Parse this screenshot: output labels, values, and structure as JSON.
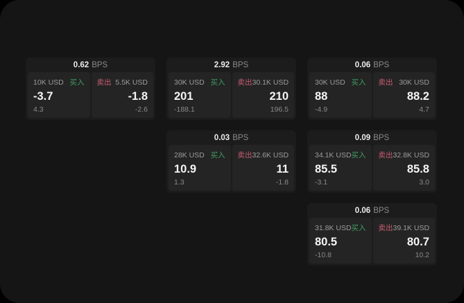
{
  "page": {
    "outer_background": "#000000",
    "surface_background": "#151515",
    "card_background": "#1c1c1c",
    "panel_background": "#242424",
    "buy_color": "#3f9e63",
    "sell_color": "#c75c6f",
    "text_primary": "#f5f5f5",
    "text_secondary": "#9c9c9c"
  },
  "cards": [
    {
      "bps_value": "0.62",
      "bps_unit": "BPS",
      "buy": {
        "amount": "10K USD",
        "side_label": "买入",
        "value": "-3.7",
        "sub_value": "4.3"
      },
      "sell": {
        "side_label": "卖出",
        "amount": "5.5K USD",
        "value": "-1.8",
        "sub_value": "-2.6"
      }
    },
    {
      "bps_value": "2.92",
      "bps_unit": "BPS",
      "buy": {
        "amount": "30K USD",
        "side_label": "买入",
        "value": "201",
        "sub_value": "-188.1"
      },
      "sell": {
        "side_label": "卖出",
        "amount": "30.1K USD",
        "value": "210",
        "sub_value": "196.5"
      }
    },
    {
      "bps_value": "0.06",
      "bps_unit": "BPS",
      "buy": {
        "amount": "30K USD",
        "side_label": "买入",
        "value": "88",
        "sub_value": "-4.9"
      },
      "sell": {
        "side_label": "卖出",
        "amount": "30K USD",
        "value": "88.2",
        "sub_value": "4.7"
      }
    },
    {
      "bps_value": "0.03",
      "bps_unit": "BPS",
      "buy": {
        "amount": "28K USD",
        "side_label": "买入",
        "value": "10.9",
        "sub_value": "1.3"
      },
      "sell": {
        "side_label": "卖出",
        "amount": "32.6K USD",
        "value": "11",
        "sub_value": "-1.8"
      }
    },
    {
      "bps_value": "0.09",
      "bps_unit": "BPS",
      "buy": {
        "amount": "34.1K USD",
        "side_label": "买入",
        "value": "85.5",
        "sub_value": "-3.1"
      },
      "sell": {
        "side_label": "卖出",
        "amount": "32.8K USD",
        "value": "85.8",
        "sub_value": "3.0"
      }
    },
    {
      "bps_value": "0.06",
      "bps_unit": "BPS",
      "buy": {
        "amount": "31.8K USD",
        "side_label": "买入",
        "value": "80.5",
        "sub_value": "-10.8"
      },
      "sell": {
        "side_label": "卖出",
        "amount": "39.1K USD",
        "value": "80.7",
        "sub_value": "10.2"
      }
    }
  ]
}
